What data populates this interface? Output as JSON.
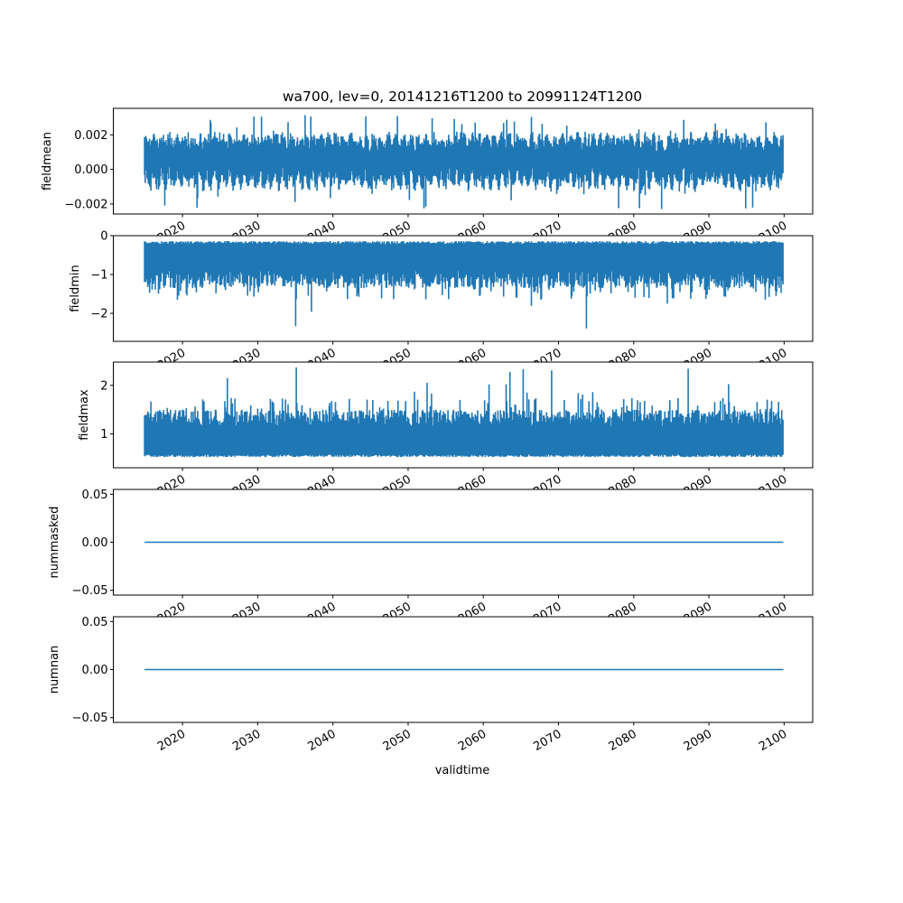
{
  "chart_data": {
    "type": "line",
    "title": "wa700, lev=0, 20141216T1200 to 20991124T1200",
    "xlabel": "validtime",
    "x_start": "2014-12-16T12:00",
    "x_end": "2099-11-24T12:00",
    "xlim": [
      2010.8,
      2103.8
    ],
    "xticks": [
      "2020",
      "2030",
      "2040",
      "2050",
      "2060",
      "2070",
      "2080",
      "2090",
      "2100"
    ],
    "xtick_values": [
      2020,
      2030,
      2040,
      2050,
      2060,
      2070,
      2080,
      2090,
      2100
    ],
    "line_color": "#1f77b4",
    "panels": [
      {
        "ylabel": "fieldmean",
        "ylim": [
          -0.00258,
          0.00353
        ],
        "yticks": [
          -0.002,
          0.0,
          0.002
        ],
        "ytick_labels": [
          "−0.002",
          "0.000",
          "0.002"
        ],
        "envelope": {
          "typical_low": -0.0009,
          "typical_high": 0.0018,
          "min": -0.0024,
          "max": 0.0033
        }
      },
      {
        "ylabel": "fieldmin",
        "ylim": [
          -2.72,
          0
        ],
        "yticks": [
          -2,
          -1,
          0
        ],
        "ytick_labels": [
          "−2",
          "−1",
          "0"
        ],
        "envelope": {
          "typical_low": -1.35,
          "typical_high": -0.18,
          "min": -2.6,
          "max": -0.12
        }
      },
      {
        "ylabel": "fieldmax",
        "ylim": [
          0.3,
          2.48
        ],
        "yticks": [
          1,
          2
        ],
        "ytick_labels": [
          "1",
          "2"
        ],
        "envelope": {
          "typical_low": 0.55,
          "typical_high": 1.45,
          "min": 0.42,
          "max": 2.38
        }
      },
      {
        "ylabel": "nummasked",
        "ylim": [
          -0.055,
          0.055
        ],
        "yticks": [
          -0.05,
          0.0,
          0.05
        ],
        "ytick_labels": [
          "−0.05",
          "0.00",
          "0.05"
        ],
        "constant": 0
      },
      {
        "ylabel": "numnan",
        "ylim": [
          -0.055,
          0.055
        ],
        "yticks": [
          -0.05,
          0.0,
          0.05
        ],
        "ytick_labels": [
          "−0.05",
          "0.00",
          "0.05"
        ],
        "constant": 0
      }
    ]
  }
}
